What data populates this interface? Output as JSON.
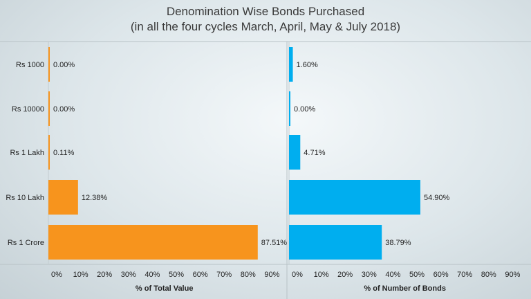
{
  "title": {
    "line1": "Denomination Wise Bonds Purchased",
    "line2": "(in all the four cycles March, April, May & July 2018)"
  },
  "colors": {
    "left": "#f7941d",
    "right": "#00aeef"
  },
  "chart_data": [
    {
      "type": "bar",
      "orientation": "horizontal",
      "categories": [
        "Rs 1000",
        "Rs 10000",
        "Rs 1 Lakh",
        "Rs 10 Lakh",
        "Rs 1 Crore"
      ],
      "values": [
        0.0,
        0.0,
        0.11,
        12.38,
        87.51
      ],
      "data_labels": [
        "0.00%",
        "0.00%",
        "0.11%",
        "12.38%",
        "87.51%"
      ],
      "xlabel": "% of Total Value",
      "ticks": [
        "0%",
        "10%",
        "20%",
        "30%",
        "40%",
        "50%",
        "60%",
        "70%",
        "80%",
        "90%"
      ],
      "xlim": [
        0,
        90
      ]
    },
    {
      "type": "bar",
      "orientation": "horizontal",
      "categories": [
        "Rs 1000",
        "Rs 10000",
        "Rs 1 Lakh",
        "Rs 10 Lakh",
        "Rs 1 Crore"
      ],
      "values": [
        1.6,
        0.0,
        4.71,
        54.9,
        38.79
      ],
      "data_labels": [
        "1.60%",
        "0.00%",
        "4.71%",
        "54.90%",
        "38.79%"
      ],
      "xlabel": "% of Number of Bonds",
      "ticks": [
        "0%",
        "10%",
        "20%",
        "30%",
        "40%",
        "50%",
        "60%",
        "70%",
        "80%",
        "90%"
      ],
      "xlim": [
        0,
        90
      ]
    }
  ]
}
